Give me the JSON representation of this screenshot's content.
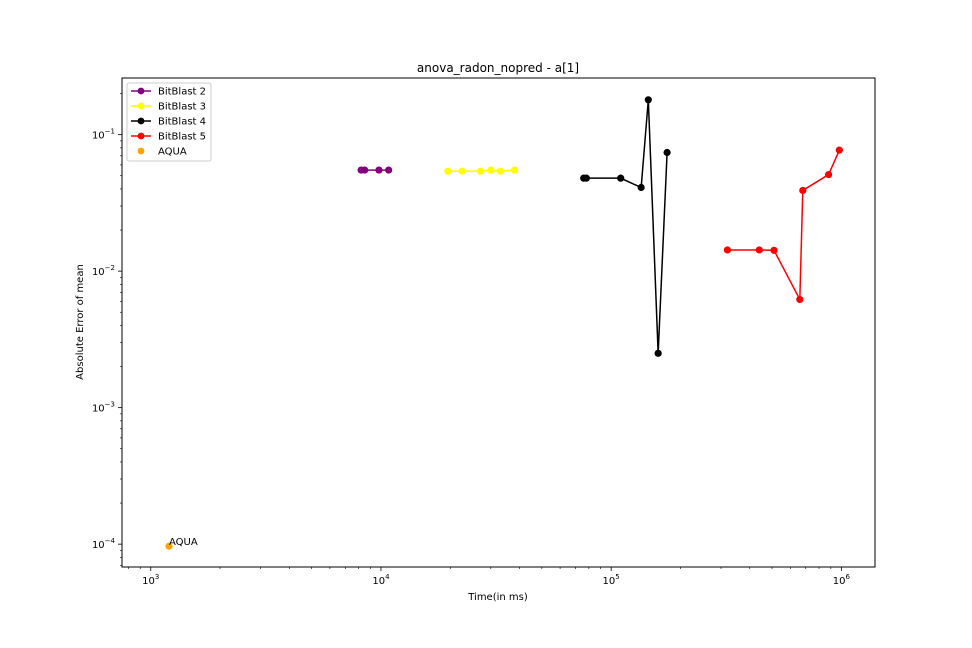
{
  "chart_data": {
    "type": "line",
    "title": "anova_radon_nopred - a[1]",
    "xlabel": "Time(in ms)",
    "ylabel": "Absolute Error of mean",
    "xscale": "log",
    "yscale": "log",
    "xlim": [
      750,
      1400000
    ],
    "ylim": [
      6.8e-05,
      0.26
    ],
    "grid": false,
    "legend_position": "top-left",
    "x_ticks": [
      {
        "value": 1000,
        "base": "10",
        "exp": "3"
      },
      {
        "value": 10000,
        "base": "10",
        "exp": "4"
      },
      {
        "value": 100000,
        "base": "10",
        "exp": "5"
      },
      {
        "value": 1000000,
        "base": "10",
        "exp": "6"
      }
    ],
    "y_ticks": [
      {
        "value": 0.0001,
        "base": "10",
        "exp": "−4"
      },
      {
        "value": 0.001,
        "base": "10",
        "exp": "−3"
      },
      {
        "value": 0.01,
        "base": "10",
        "exp": "−2"
      },
      {
        "value": 0.1,
        "base": "10",
        "exp": "−1"
      }
    ],
    "series": [
      {
        "name": "BitBlast 2",
        "color": "#800080",
        "marker": "line",
        "points": [
          [
            8200,
            0.055
          ],
          [
            8500,
            0.055
          ],
          [
            9800,
            0.055
          ],
          [
            10800,
            0.055
          ]
        ]
      },
      {
        "name": "BitBlast 3",
        "color": "#ffff00",
        "marker": "line",
        "points": [
          [
            19500,
            0.054
          ],
          [
            22500,
            0.054
          ],
          [
            27000,
            0.054
          ],
          [
            30000,
            0.055
          ],
          [
            33000,
            0.054
          ],
          [
            38000,
            0.055
          ]
        ]
      },
      {
        "name": "BitBlast 4",
        "color": "#000000",
        "marker": "line",
        "points": [
          [
            76000,
            0.048
          ],
          [
            78000,
            0.048
          ],
          [
            110000,
            0.048
          ],
          [
            135000,
            0.041
          ],
          [
            145000,
            0.18
          ],
          [
            160000,
            0.0025
          ],
          [
            175000,
            0.074
          ]
        ]
      },
      {
        "name": "BitBlast 5",
        "color": "#ff0000",
        "marker": "line",
        "points": [
          [
            320000,
            0.0143
          ],
          [
            440000,
            0.0143
          ],
          [
            510000,
            0.0142
          ],
          [
            660000,
            0.0062
          ],
          [
            680000,
            0.039
          ],
          [
            880000,
            0.051
          ],
          [
            980000,
            0.077
          ]
        ]
      },
      {
        "name": "AQUA",
        "color": "#ffa500",
        "marker": "point",
        "points": [
          [
            1200,
            9.65e-05
          ]
        ]
      }
    ],
    "annotations": [
      {
        "text": "AQUA",
        "x": 1200,
        "y": 9.65e-05
      }
    ]
  }
}
